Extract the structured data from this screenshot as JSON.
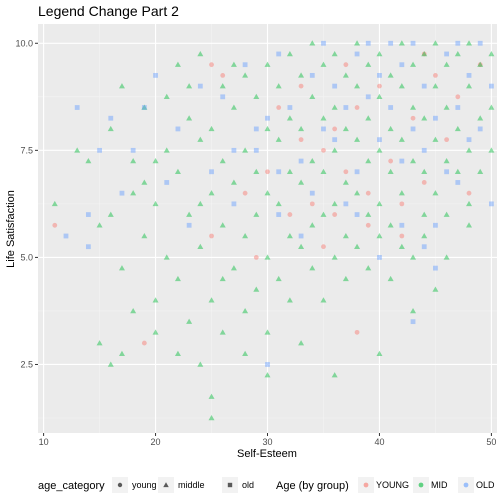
{
  "chart_data": {
    "type": "scatter",
    "title": "Legend Change Part 2",
    "xlabel": "Self-Esteem",
    "ylabel": "Life Satisfaction",
    "xlim": [
      9.5,
      50.5
    ],
    "ylim": [
      0.9,
      10.45
    ],
    "x_ticks": [
      10,
      20,
      30,
      40,
      50
    ],
    "y_ticks": [
      2.5,
      5.0,
      7.5,
      10.0
    ],
    "x_tick_labels": [
      "10",
      "20",
      "30",
      "40",
      "50"
    ],
    "y_tick_labels": [
      "2.5",
      "5.0",
      "7.5",
      "10.0"
    ],
    "grid": true,
    "legend_position": "bottom",
    "shape_legend": {
      "title": "age_category",
      "items": [
        {
          "label": "young",
          "shape": "circle"
        },
        {
          "label": "middle",
          "shape": "triangle"
        },
        {
          "label": "old",
          "shape": "square"
        }
      ]
    },
    "color_legend": {
      "title": "Age (by group)",
      "items": [
        {
          "label": "YOUNG",
          "color": "#F8766D"
        },
        {
          "label": "MID",
          "color": "#00BA38"
        },
        {
          "label": "OLD",
          "color": "#619CFF"
        }
      ]
    },
    "series": [
      {
        "group": "YOUNG",
        "shape": "circle",
        "color": "#F8766D",
        "points": [
          [
            11,
            5.75
          ],
          [
            19,
            3.0
          ],
          [
            25,
            9.5
          ],
          [
            25,
            5.5
          ],
          [
            26,
            9.25
          ],
          [
            28,
            6.5
          ],
          [
            29,
            5.0
          ],
          [
            30,
            7.0
          ],
          [
            31,
            8.5
          ],
          [
            32,
            6.0
          ],
          [
            33,
            7.75
          ],
          [
            34,
            6.25
          ],
          [
            35,
            7.5
          ],
          [
            36,
            8.0
          ],
          [
            36,
            6.0
          ],
          [
            37,
            7.0
          ],
          [
            38,
            3.25
          ],
          [
            38,
            8.5
          ],
          [
            39,
            6.5
          ],
          [
            40,
            9.0
          ],
          [
            41,
            7.25
          ],
          [
            42,
            5.5
          ],
          [
            43,
            8.25
          ],
          [
            44,
            6.75
          ],
          [
            45,
            9.25
          ],
          [
            46,
            7.75
          ],
          [
            47,
            8.75
          ],
          [
            48,
            6.5
          ],
          [
            49,
            9.5
          ],
          [
            35,
            5.25
          ],
          [
            39,
            5.75
          ],
          [
            42,
            6.25
          ],
          [
            44,
            9.75
          ],
          [
            33,
            9.0
          ],
          [
            37,
            9.5
          ]
        ]
      },
      {
        "group": "MID",
        "shape": "triangle",
        "color": "#00BA38",
        "points": [
          [
            11,
            6.25
          ],
          [
            13,
            7.5
          ],
          [
            14,
            7.25
          ],
          [
            15,
            5.75
          ],
          [
            15,
            3.0
          ],
          [
            16,
            2.5
          ],
          [
            16,
            8.0
          ],
          [
            17,
            9.0
          ],
          [
            17,
            4.75
          ],
          [
            17,
            2.75
          ],
          [
            18,
            6.5
          ],
          [
            18,
            3.75
          ],
          [
            19,
            8.5
          ],
          [
            19,
            5.5
          ],
          [
            20,
            7.25
          ],
          [
            20,
            6.25
          ],
          [
            20,
            4.0
          ],
          [
            20,
            3.25
          ],
          [
            21,
            8.75
          ],
          [
            21,
            5.0
          ],
          [
            22,
            9.5
          ],
          [
            22,
            7.0
          ],
          [
            22,
            4.5
          ],
          [
            22,
            2.75
          ],
          [
            23,
            8.25
          ],
          [
            23,
            6.0
          ],
          [
            23,
            3.5
          ],
          [
            24,
            9.75
          ],
          [
            24,
            7.75
          ],
          [
            24,
            5.25
          ],
          [
            24,
            2.5
          ],
          [
            25,
            8.0
          ],
          [
            25,
            6.5
          ],
          [
            25,
            4.0
          ],
          [
            25,
            1.75
          ],
          [
            25,
            1.25
          ],
          [
            26,
            9.0
          ],
          [
            26,
            7.25
          ],
          [
            26,
            5.75
          ],
          [
            26,
            3.25
          ],
          [
            27,
            8.5
          ],
          [
            27,
            6.75
          ],
          [
            27,
            4.75
          ],
          [
            28,
            9.25
          ],
          [
            28,
            7.5
          ],
          [
            28,
            5.5
          ],
          [
            28,
            3.75
          ],
          [
            29,
            8.75
          ],
          [
            29,
            7.0
          ],
          [
            29,
            6.0
          ],
          [
            29,
            4.25
          ],
          [
            30,
            9.5
          ],
          [
            30,
            8.0
          ],
          [
            30,
            6.5
          ],
          [
            30,
            5.0
          ],
          [
            30,
            3.25
          ],
          [
            31,
            9.0
          ],
          [
            31,
            7.75
          ],
          [
            31,
            6.25
          ],
          [
            31,
            4.5
          ],
          [
            32,
            9.75
          ],
          [
            32,
            8.25
          ],
          [
            32,
            7.0
          ],
          [
            32,
            5.5
          ],
          [
            33,
            9.25
          ],
          [
            33,
            8.0
          ],
          [
            33,
            6.75
          ],
          [
            33,
            5.25
          ],
          [
            33,
            3.0
          ],
          [
            34,
            10.0
          ],
          [
            34,
            8.75
          ],
          [
            34,
            7.25
          ],
          [
            34,
            5.75
          ],
          [
            35,
            9.5
          ],
          [
            35,
            8.25
          ],
          [
            35,
            7.0
          ],
          [
            35,
            6.0
          ],
          [
            35,
            4.0
          ],
          [
            36,
            9.75
          ],
          [
            36,
            8.5
          ],
          [
            36,
            7.5
          ],
          [
            36,
            6.25
          ],
          [
            36,
            2.25
          ],
          [
            37,
            9.25
          ],
          [
            37,
            8.0
          ],
          [
            37,
            6.75
          ],
          [
            37,
            5.5
          ],
          [
            38,
            10.0
          ],
          [
            38,
            9.0
          ],
          [
            38,
            7.75
          ],
          [
            38,
            6.5
          ],
          [
            39,
            9.5
          ],
          [
            39,
            8.25
          ],
          [
            39,
            7.25
          ],
          [
            39,
            6.0
          ],
          [
            40,
            9.75
          ],
          [
            40,
            8.75
          ],
          [
            40,
            7.5
          ],
          [
            40,
            6.25
          ],
          [
            40,
            2.75
          ],
          [
            41,
            9.25
          ],
          [
            41,
            8.0
          ],
          [
            41,
            7.0
          ],
          [
            41,
            5.75
          ],
          [
            42,
            10.0
          ],
          [
            42,
            9.0
          ],
          [
            42,
            7.75
          ],
          [
            42,
            6.5
          ],
          [
            43,
            9.5
          ],
          [
            43,
            8.5
          ],
          [
            43,
            7.25
          ],
          [
            43,
            5.0
          ],
          [
            44,
            9.75
          ],
          [
            44,
            8.25
          ],
          [
            44,
            7.0
          ],
          [
            44,
            6.0
          ],
          [
            45,
            10.0
          ],
          [
            45,
            9.0
          ],
          [
            45,
            7.75
          ],
          [
            45,
            6.5
          ],
          [
            46,
            9.5
          ],
          [
            46,
            8.5
          ],
          [
            46,
            7.25
          ],
          [
            46,
            6.0
          ],
          [
            47,
            9.75
          ],
          [
            47,
            8.0
          ],
          [
            47,
            7.0
          ],
          [
            48,
            10.0
          ],
          [
            48,
            9.0
          ],
          [
            48,
            7.5
          ],
          [
            48,
            6.25
          ],
          [
            49,
            9.5
          ],
          [
            49,
            8.25
          ],
          [
            49,
            7.0
          ],
          [
            50,
            9.75
          ],
          [
            50,
            8.5
          ],
          [
            41,
            4.5
          ],
          [
            43,
            3.75
          ],
          [
            45,
            4.25
          ],
          [
            39,
            4.75
          ],
          [
            37,
            4.5
          ],
          [
            27,
            9.5
          ],
          [
            23,
            9.0
          ],
          [
            21,
            7.5
          ],
          [
            19,
            6.75
          ],
          [
            18,
            7.25
          ],
          [
            16,
            6.0
          ],
          [
            24,
            6.25
          ],
          [
            26,
            4.5
          ],
          [
            28,
            2.75
          ],
          [
            30,
            2.25
          ],
          [
            32,
            4.0
          ],
          [
            34,
            4.75
          ],
          [
            36,
            5.0
          ],
          [
            38,
            5.25
          ],
          [
            40,
            5.5
          ],
          [
            42,
            5.25
          ],
          [
            44,
            5.5
          ],
          [
            46,
            5.0
          ],
          [
            48,
            5.75
          ],
          [
            50,
            7.5
          ]
        ]
      },
      {
        "group": "OLD",
        "shape": "square",
        "color": "#619CFF",
        "points": [
          [
            12,
            5.5
          ],
          [
            13,
            8.5
          ],
          [
            14,
            6.0
          ],
          [
            14,
            5.25
          ],
          [
            15,
            7.5
          ],
          [
            16,
            8.25
          ],
          [
            17,
            6.5
          ],
          [
            18,
            7.5
          ],
          [
            19,
            8.5
          ],
          [
            20,
            9.25
          ],
          [
            21,
            6.75
          ],
          [
            22,
            8.0
          ],
          [
            23,
            5.75
          ],
          [
            24,
            9.0
          ],
          [
            25,
            7.0
          ],
          [
            26,
            8.75
          ],
          [
            27,
            6.25
          ],
          [
            28,
            9.5
          ],
          [
            29,
            7.5
          ],
          [
            30,
            2.5
          ],
          [
            30,
            8.25
          ],
          [
            31,
            9.75
          ],
          [
            31,
            6.0
          ],
          [
            32,
            8.5
          ],
          [
            33,
            7.25
          ],
          [
            34,
            9.25
          ],
          [
            34,
            6.5
          ],
          [
            35,
            8.0
          ],
          [
            35,
            10.0
          ],
          [
            36,
            7.75
          ],
          [
            36,
            9.0
          ],
          [
            37,
            8.5
          ],
          [
            37,
            6.25
          ],
          [
            38,
            9.75
          ],
          [
            38,
            7.0
          ],
          [
            39,
            8.75
          ],
          [
            39,
            10.0
          ],
          [
            40,
            7.75
          ],
          [
            40,
            9.25
          ],
          [
            41,
            8.5
          ],
          [
            41,
            10.0
          ],
          [
            42,
            7.25
          ],
          [
            42,
            9.5
          ],
          [
            43,
            8.0
          ],
          [
            43,
            10.0
          ],
          [
            44,
            7.5
          ],
          [
            44,
            9.0
          ],
          [
            45,
            8.25
          ],
          [
            45,
            5.75
          ],
          [
            46,
            9.75
          ],
          [
            46,
            7.0
          ],
          [
            47,
            8.5
          ],
          [
            47,
            10.0
          ],
          [
            47,
            6.75
          ],
          [
            48,
            9.25
          ],
          [
            48,
            7.75
          ],
          [
            49,
            8.0
          ],
          [
            49,
            10.0
          ],
          [
            50,
            9.0
          ],
          [
            50,
            6.25
          ],
          [
            43,
            3.5
          ],
          [
            45,
            4.75
          ],
          [
            44,
            5.25
          ],
          [
            42,
            5.75
          ],
          [
            40,
            5.0
          ],
          [
            38,
            6.0
          ],
          [
            33,
            5.5
          ],
          [
            31,
            7.0
          ],
          [
            29,
            8.0
          ],
          [
            27,
            7.5
          ]
        ]
      }
    ]
  }
}
